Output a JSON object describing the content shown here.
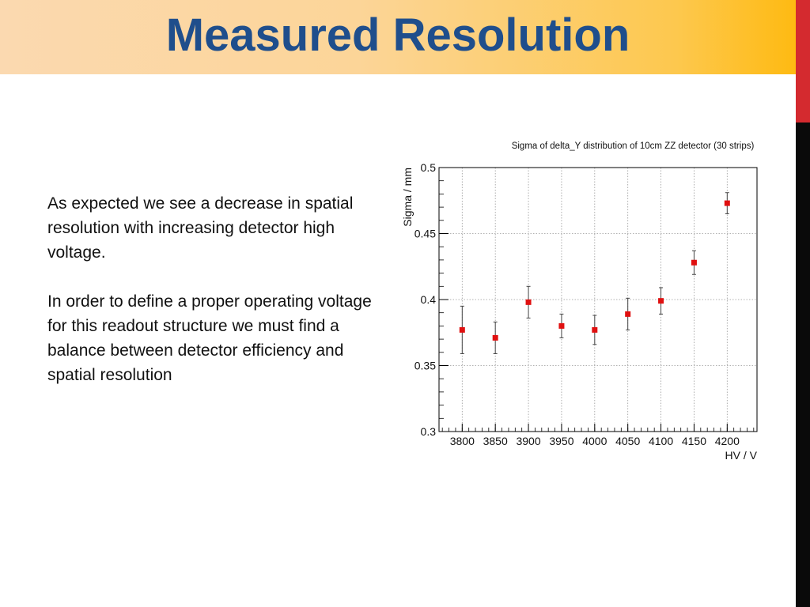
{
  "slide": {
    "title": "Measured Resolution",
    "paragraphs": [
      "As expected we see a decrease in spatial resolution with increasing detector high voltage.",
      "In order to define a proper operating voltage for this readout structure we must find a balance between detector efficiency and spatial resolution"
    ]
  },
  "colors": {
    "title_text": "#1f4e8c",
    "header_gradient_start": "#fbd9b0",
    "header_gradient_end": "#feba12",
    "side_bar_red": "#d42a2f",
    "side_bar_black": "#0a0a0a",
    "marker": "#e01010"
  },
  "chart_data": {
    "type": "scatter",
    "title": "Sigma of delta_Y distribution of 10cm ZZ detector (30 strips)",
    "xlabel": "HV / V",
    "ylabel": "Sigma / mm",
    "x": [
      3800,
      3850,
      3900,
      3950,
      4000,
      4050,
      4100,
      4150,
      4200
    ],
    "y": [
      0.377,
      0.371,
      0.398,
      0.38,
      0.377,
      0.389,
      0.399,
      0.428,
      0.473
    ],
    "yerr": [
      0.018,
      0.012,
      0.012,
      0.009,
      0.011,
      0.012,
      0.01,
      0.009,
      0.008
    ],
    "xlim": [
      3765,
      4245
    ],
    "ylim": [
      0.3,
      0.5
    ],
    "xticks": [
      "3800",
      "3850",
      "3900",
      "3950",
      "4000",
      "4050",
      "4100",
      "4150",
      "4200"
    ],
    "yticks": [
      "0.3",
      "0.35",
      "0.4",
      "0.45",
      "0.5"
    ],
    "grid": true
  }
}
